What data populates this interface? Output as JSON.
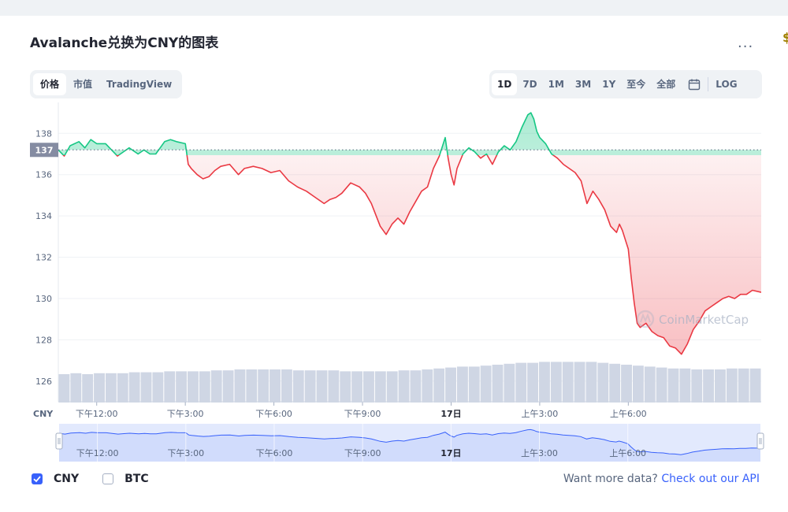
{
  "header": {
    "title": "Avalanche兑换为CNY的图表",
    "more_label": "..."
  },
  "tabs": [
    {
      "label": "价格",
      "active": true
    },
    {
      "label": "市值",
      "active": false
    },
    {
      "label": "TradingView",
      "active": false
    }
  ],
  "ranges": {
    "items": [
      {
        "label": "1D",
        "active": true
      },
      {
        "label": "7D",
        "active": false
      },
      {
        "label": "1M",
        "active": false
      },
      {
        "label": "3M",
        "active": false
      },
      {
        "label": "1Y",
        "active": false
      },
      {
        "label": "至今",
        "active": false
      },
      {
        "label": "全部",
        "active": false
      }
    ],
    "calendar_icon": "calendar-icon",
    "log_label": "LOG"
  },
  "watermark": "CoinMarketCap",
  "legend": [
    {
      "label": "CNY",
      "checked": true
    },
    {
      "label": "BTC",
      "checked": false
    }
  ],
  "footer": {
    "prompt": "Want more data?",
    "link": "Check out our API"
  },
  "colors": {
    "up": "#16c784",
    "down": "#ea3943",
    "accent": "#3861fb",
    "volume": "#cfd6e4"
  },
  "chart_data": {
    "type": "line",
    "ylabel": "CNY",
    "ylim": [
      125,
      139.5
    ],
    "yticks": [
      126,
      128,
      130,
      132,
      134,
      136,
      138
    ],
    "reference_price": 137.2,
    "reference_label": "137",
    "xticks": [
      {
        "t": 12,
        "label": "下午12:00",
        "bold": false
      },
      {
        "t": 15,
        "label": "下午3:00",
        "bold": false
      },
      {
        "t": 18,
        "label": "下午6:00",
        "bold": false
      },
      {
        "t": 21,
        "label": "下午9:00",
        "bold": false
      },
      {
        "t": 24,
        "label": "17日",
        "bold": true
      },
      {
        "t": 27,
        "label": "上午3:00",
        "bold": false
      },
      {
        "t": 30,
        "label": "上午6:00",
        "bold": false
      }
    ],
    "x_range": [
      10.7,
      34.5
    ],
    "series": [
      {
        "x": [
          10.7,
          10.9,
          11.1,
          11.4,
          11.6,
          11.8,
          12.0,
          12.3,
          12.5,
          12.7,
          12.9,
          13.1,
          13.4,
          13.6,
          13.8,
          14.0,
          14.3,
          14.5,
          14.7,
          15.0,
          15.1,
          15.2,
          15.4,
          15.6,
          15.8,
          16.0,
          16.2,
          16.5,
          16.8,
          17.0,
          17.3,
          17.6,
          17.9,
          18.2,
          18.5,
          18.8,
          19.1,
          19.4,
          19.7,
          19.9,
          20.1,
          20.3,
          20.6,
          20.9,
          21.1,
          21.3,
          21.6,
          21.8,
          22.0,
          22.2,
          22.4,
          22.6,
          22.8,
          23.0,
          23.2,
          23.4,
          23.6,
          23.8,
          23.9,
          24.0,
          24.1,
          24.2,
          24.4,
          24.6,
          24.8,
          25.0,
          25.2,
          25.4,
          25.6,
          25.8,
          26.0,
          26.2,
          26.4,
          26.6,
          26.7,
          26.8,
          26.9,
          27.0,
          27.2,
          27.4,
          27.6,
          27.8,
          28.0,
          28.2,
          28.4,
          28.6,
          28.8,
          29.0,
          29.2,
          29.4,
          29.6,
          29.7,
          29.8,
          30.0,
          30.1,
          30.2,
          30.3,
          30.4,
          30.6,
          30.8,
          31.0,
          31.2,
          31.4,
          31.6,
          31.8,
          32.0,
          32.2,
          32.4,
          32.6,
          32.8,
          33.0,
          33.2,
          33.4,
          33.6,
          33.8,
          34.0,
          34.2,
          34.5
        ],
        "values": [
          137.2,
          136.9,
          137.4,
          137.6,
          137.3,
          137.7,
          137.5,
          137.5,
          137.2,
          136.9,
          137.1,
          137.3,
          137.0,
          137.2,
          137.0,
          137.0,
          137.6,
          137.7,
          137.6,
          137.5,
          136.5,
          136.3,
          136.0,
          135.8,
          135.9,
          136.2,
          136.4,
          136.5,
          136.0,
          136.3,
          136.4,
          136.3,
          136.1,
          136.2,
          135.7,
          135.4,
          135.2,
          134.9,
          134.6,
          134.8,
          134.9,
          135.1,
          135.6,
          135.4,
          135.1,
          134.6,
          133.5,
          133.1,
          133.6,
          133.9,
          133.6,
          134.2,
          134.7,
          135.2,
          135.4,
          136.3,
          136.9,
          137.8,
          136.8,
          136.0,
          135.5,
          136.3,
          137.0,
          137.3,
          137.1,
          136.8,
          137.0,
          136.5,
          137.1,
          137.4,
          137.2,
          137.6,
          138.3,
          138.9,
          139.0,
          138.7,
          138.1,
          137.8,
          137.5,
          137.0,
          136.8,
          136.5,
          136.3,
          136.1,
          135.7,
          134.6,
          135.2,
          134.8,
          134.3,
          133.5,
          133.2,
          133.6,
          133.3,
          132.4,
          131.0,
          129.8,
          128.8,
          128.6,
          128.8,
          128.4,
          128.2,
          128.1,
          127.7,
          127.6,
          127.3,
          127.8,
          128.5,
          128.9,
          129.4,
          129.6,
          129.8,
          130.0,
          130.1,
          130.0,
          130.2,
          130.2,
          130.4,
          130.3
        ]
      }
    ],
    "volume": {
      "x_range": [
        10.7,
        34.5
      ],
      "values": [
        0.3,
        0.31,
        0.3,
        0.31,
        0.31,
        0.31,
        0.32,
        0.32,
        0.32,
        0.33,
        0.33,
        0.33,
        0.33,
        0.34,
        0.34,
        0.35,
        0.35,
        0.35,
        0.35,
        0.35,
        0.34,
        0.34,
        0.34,
        0.34,
        0.33,
        0.33,
        0.33,
        0.33,
        0.33,
        0.34,
        0.34,
        0.35,
        0.36,
        0.37,
        0.38,
        0.38,
        0.39,
        0.4,
        0.41,
        0.42,
        0.42,
        0.43,
        0.43,
        0.43,
        0.43,
        0.43,
        0.42,
        0.41,
        0.4,
        0.39,
        0.38,
        0.37,
        0.36,
        0.36,
        0.35,
        0.35,
        0.35,
        0.36,
        0.36,
        0.36
      ]
    }
  },
  "navigator": {
    "xticks": [
      "下午12:00",
      "下午3:00",
      "下午6:00",
      "下午9:00",
      "17日",
      "上午3:00",
      "上午6:00"
    ]
  }
}
